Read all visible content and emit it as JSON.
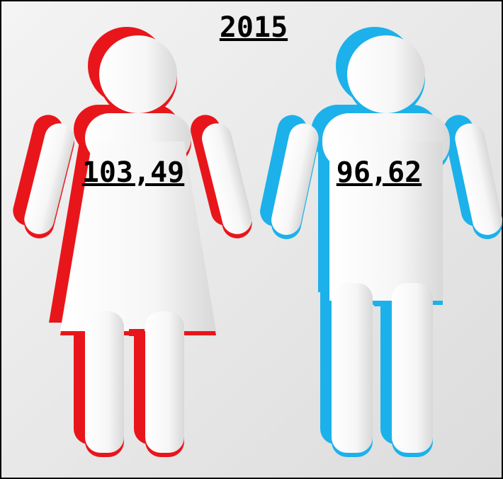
{
  "title": "2015",
  "figures": [
    {
      "label": "103,49"
    },
    {
      "label": "96,62"
    }
  ]
}
